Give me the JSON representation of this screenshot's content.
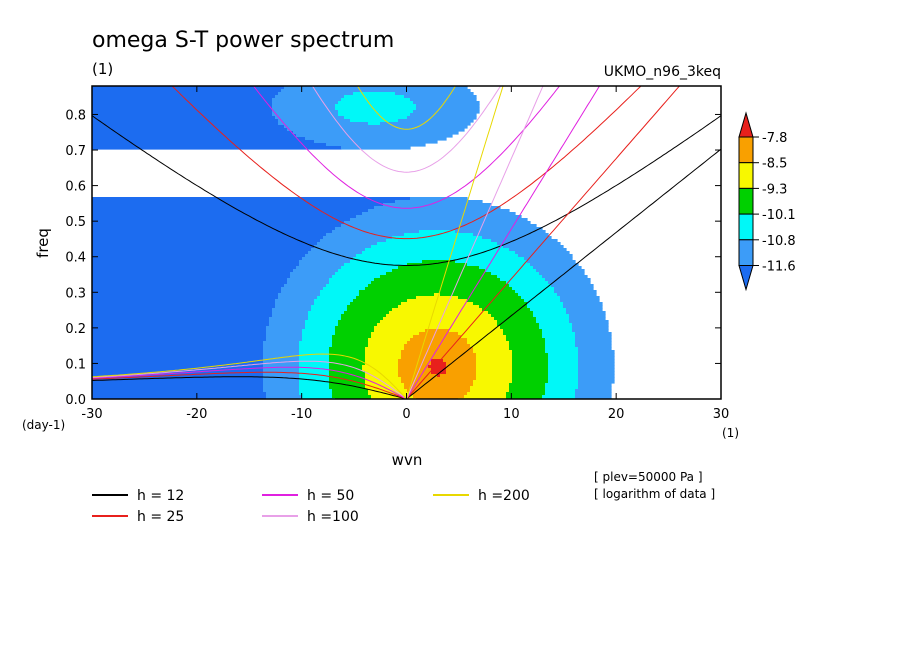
{
  "chart_data": {
    "type": "heatmap",
    "title": "omega S-T power spectrum",
    "subtitle_left": "(1)",
    "subtitle_right": "UKMO_n96_3keq",
    "xlabel": "wvn",
    "ylabel": "freq",
    "x_unit": "(1)",
    "y_unit": "(day-1)",
    "xlim": [
      -30,
      30
    ],
    "ylim": [
      0,
      0.88
    ],
    "xticks": [
      -30,
      -20,
      -10,
      0,
      10,
      20,
      30
    ],
    "xtick_labels": [
      "-30",
      "-20",
      "-10",
      "0",
      "10",
      "20",
      "30"
    ],
    "yticks": [
      0,
      0.1,
      0.2,
      0.3,
      0.4,
      0.5,
      0.6,
      0.7,
      0.8
    ],
    "ytick_labels": [
      "0.0",
      "0.1",
      "0.2",
      "0.3",
      "0.4",
      "0.5",
      "0.6",
      "0.7",
      "0.8"
    ],
    "colorbar": {
      "labels": [
        "-7.8",
        "-8.5",
        "-9.3",
        "-10.1",
        "-10.8",
        "-11.6"
      ],
      "levels": [
        -7.8,
        -8.5,
        -9.3,
        -10.1,
        -10.8,
        -11.6
      ],
      "colors": [
        "#e8201c",
        "#f9a000",
        "#f8f800",
        "#00d000",
        "#00f8f8",
        "#3c9cf8",
        "#1c6cf0"
      ]
    },
    "field_model": {
      "description_values": "log10 power; peak about -7.6 near wvn 3, freq 0.09",
      "peak_wvn": 3,
      "peak_freq": 0.09
    },
    "curves": [
      {
        "name": "h = 12",
        "color": "#000000",
        "h": 12
      },
      {
        "name": "h = 25",
        "color": "#e8201c",
        "h": 25
      },
      {
        "name": "h = 50",
        "color": "#e020e0",
        "h": 50
      },
      {
        "name": "h =100",
        "color": "#e8a0e8",
        "h": 100
      },
      {
        "name": "h =200",
        "color": "#e8d800",
        "h": 200
      }
    ],
    "annotations": [
      "[ plev=50000 Pa ]",
      "[ logarithm of data ]"
    ]
  }
}
